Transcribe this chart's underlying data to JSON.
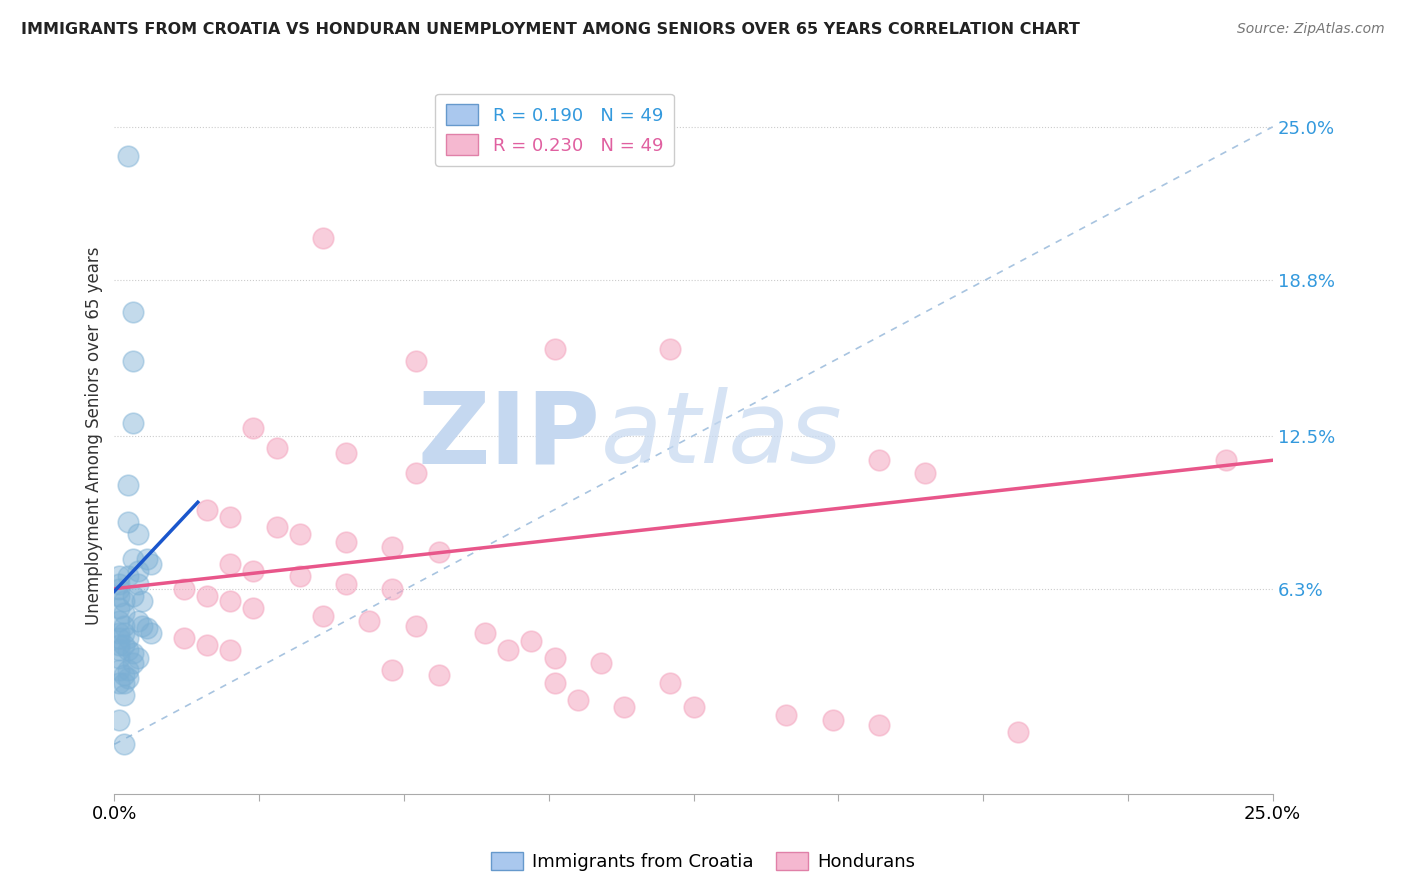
{
  "title": "IMMIGRANTS FROM CROATIA VS HONDURAN UNEMPLOYMENT AMONG SENIORS OVER 65 YEARS CORRELATION CHART",
  "source": "Source: ZipAtlas.com",
  "ylabel": "Unemployment Among Seniors over 65 years",
  "xlim": [
    0,
    0.25
  ],
  "ylim": [
    -0.02,
    0.27
  ],
  "ytick_labels": [
    "6.3%",
    "12.5%",
    "18.8%",
    "25.0%"
  ],
  "ytick_values": [
    0.063,
    0.125,
    0.188,
    0.25
  ],
  "xtick_positions": [
    0.0,
    0.03125,
    0.0625,
    0.09375,
    0.125,
    0.15625,
    0.1875,
    0.21875,
    0.25
  ],
  "legend_r1": "R = 0.190   N = 49",
  "legend_r2": "R = 0.230   N = 49",
  "croatia_color": "#7bafd4",
  "honduran_color": "#f4a7c0",
  "trendline_croatia_color": "#1a56cc",
  "trendline_honduran_color": "#e8568a",
  "diagonal_color": "#a8c4e0",
  "background_color": "#ffffff",
  "grid_color": "#cccccc",
  "croatia_points": [
    [
      0.003,
      0.238
    ],
    [
      0.004,
      0.175
    ],
    [
      0.004,
      0.155
    ],
    [
      0.004,
      0.13
    ],
    [
      0.003,
      0.105
    ],
    [
      0.003,
      0.09
    ],
    [
      0.005,
      0.085
    ],
    [
      0.004,
      0.075
    ],
    [
      0.005,
      0.07
    ],
    [
      0.003,
      0.068
    ],
    [
      0.005,
      0.065
    ],
    [
      0.004,
      0.06
    ],
    [
      0.006,
      0.058
    ],
    [
      0.007,
      0.075
    ],
    [
      0.008,
      0.073
    ],
    [
      0.005,
      0.05
    ],
    [
      0.006,
      0.048
    ],
    [
      0.007,
      0.047
    ],
    [
      0.008,
      0.045
    ],
    [
      0.002,
      0.045
    ],
    [
      0.003,
      0.043
    ],
    [
      0.002,
      0.04
    ],
    [
      0.003,
      0.038
    ],
    [
      0.004,
      0.037
    ],
    [
      0.005,
      0.035
    ],
    [
      0.004,
      0.033
    ],
    [
      0.003,
      0.03
    ],
    [
      0.002,
      0.028
    ],
    [
      0.003,
      0.027
    ],
    [
      0.002,
      0.025
    ],
    [
      0.001,
      0.068
    ],
    [
      0.001,
      0.065
    ],
    [
      0.001,
      0.063
    ],
    [
      0.001,
      0.06
    ],
    [
      0.002,
      0.058
    ],
    [
      0.001,
      0.055
    ],
    [
      0.002,
      0.053
    ],
    [
      0.001,
      0.05
    ],
    [
      0.002,
      0.048
    ],
    [
      0.001,
      0.045
    ],
    [
      0.001,
      0.043
    ],
    [
      0.001,
      0.04
    ],
    [
      0.001,
      0.038
    ],
    [
      0.001,
      0.035
    ],
    [
      0.001,
      0.03
    ],
    [
      0.001,
      0.025
    ],
    [
      0.002,
      0.02
    ],
    [
      0.001,
      0.01
    ],
    [
      0.002,
      0.0
    ]
  ],
  "honduran_points": [
    [
      0.045,
      0.205
    ],
    [
      0.065,
      0.155
    ],
    [
      0.095,
      0.16
    ],
    [
      0.12,
      0.16
    ],
    [
      0.03,
      0.128
    ],
    [
      0.035,
      0.12
    ],
    [
      0.05,
      0.118
    ],
    [
      0.065,
      0.11
    ],
    [
      0.165,
      0.115
    ],
    [
      0.175,
      0.11
    ],
    [
      0.02,
      0.095
    ],
    [
      0.025,
      0.092
    ],
    [
      0.035,
      0.088
    ],
    [
      0.04,
      0.085
    ],
    [
      0.05,
      0.082
    ],
    [
      0.06,
      0.08
    ],
    [
      0.07,
      0.078
    ],
    [
      0.025,
      0.073
    ],
    [
      0.03,
      0.07
    ],
    [
      0.04,
      0.068
    ],
    [
      0.05,
      0.065
    ],
    [
      0.06,
      0.063
    ],
    [
      0.015,
      0.063
    ],
    [
      0.02,
      0.06
    ],
    [
      0.025,
      0.058
    ],
    [
      0.03,
      0.055
    ],
    [
      0.045,
      0.052
    ],
    [
      0.055,
      0.05
    ],
    [
      0.065,
      0.048
    ],
    [
      0.08,
      0.045
    ],
    [
      0.09,
      0.042
    ],
    [
      0.015,
      0.043
    ],
    [
      0.02,
      0.04
    ],
    [
      0.025,
      0.038
    ],
    [
      0.085,
      0.038
    ],
    [
      0.095,
      0.035
    ],
    [
      0.105,
      0.033
    ],
    [
      0.06,
      0.03
    ],
    [
      0.07,
      0.028
    ],
    [
      0.095,
      0.025
    ],
    [
      0.12,
      0.025
    ],
    [
      0.1,
      0.018
    ],
    [
      0.11,
      0.015
    ],
    [
      0.125,
      0.015
    ],
    [
      0.145,
      0.012
    ],
    [
      0.155,
      0.01
    ],
    [
      0.165,
      0.008
    ],
    [
      0.195,
      0.005
    ],
    [
      0.24,
      0.115
    ]
  ],
  "watermark_zip_color": "#c5d8f0",
  "watermark_atlas_color": "#c5d8f0"
}
